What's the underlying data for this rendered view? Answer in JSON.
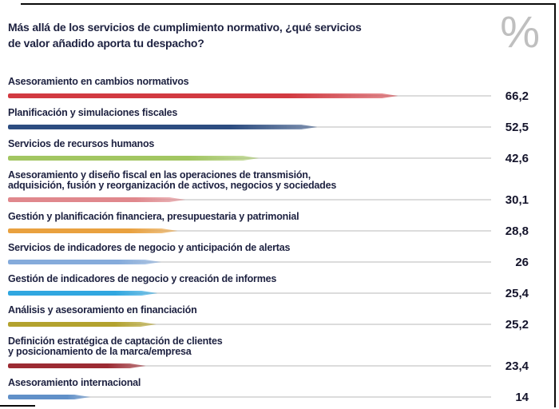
{
  "header": {
    "percent_symbol": "%"
  },
  "chart_data": {
    "type": "bar",
    "orientation": "horizontal",
    "title": "Más allá de los servicios de cumplimiento normativo, ¿qué servicios\nde valor añadido aporta tu despacho?",
    "unit": "%",
    "xlim": [
      0,
      82
    ],
    "grid": false,
    "legend": false,
    "track_color": "#dcdcdc",
    "items": [
      {
        "label": "Asesoramiento en cambios normativos",
        "value": 66.2,
        "value_label": "66,2",
        "color": "#d23a41"
      },
      {
        "label": "Planificación y simulaciones fiscales",
        "value": 52.5,
        "value_label": "52,5",
        "color": "#2c4c80"
      },
      {
        "label": "Servicios de recursos humanos",
        "value": 42.6,
        "value_label": "42,6",
        "color": "#a2c661"
      },
      {
        "label": "Asesoramiento y diseño fiscal en las operaciones de transmisión,\nadquisición, fusión y reorganización de activos, negocios y sociedades",
        "value": 30.1,
        "value_label": "30,1",
        "color": "#e0888d"
      },
      {
        "label": "Gestión y planificación financiera, presupuestaria y patrimonial",
        "value": 28.8,
        "value_label": "28,8",
        "color": "#e9a13f"
      },
      {
        "label": "Servicios de indicadores de negocio y anticipación de alertas",
        "value": 26,
        "value_label": "26",
        "color": "#85abdb"
      },
      {
        "label": "Gestión de indicadores de negocio y creación de informes",
        "value": 25.4,
        "value_label": "25,4",
        "color": "#30a7e0"
      },
      {
        "label": "Análisis y asesoramiento en financiación",
        "value": 25.2,
        "value_label": "25,2",
        "color": "#b3a22e"
      },
      {
        "label": "Definición estratégica de captación de clientes\ny posicionamiento de la marca/empresa",
        "value": 23.4,
        "value_label": "23,4",
        "color": "#9c2b33"
      },
      {
        "label": "Asesoramiento internacional",
        "value": 14,
        "value_label": "14",
        "color": "#6090c8"
      }
    ]
  }
}
